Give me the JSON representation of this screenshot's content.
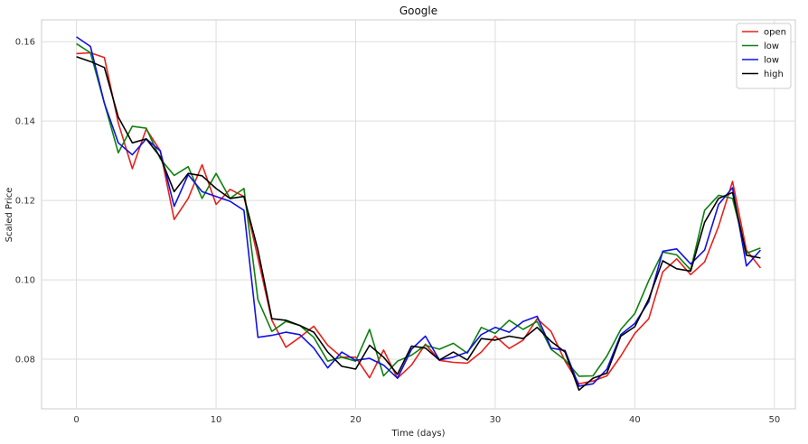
{
  "chart_data": {
    "type": "line",
    "title": "Google",
    "xlabel": "Time (days)",
    "ylabel": "Scaled Price",
    "xlim": [
      -2.5,
      51.5
    ],
    "ylim": [
      0.0675,
      0.1655
    ],
    "xticks": [
      0,
      10,
      20,
      30,
      40,
      50
    ],
    "yticks": [
      0.08,
      0.1,
      0.12,
      0.14,
      0.16
    ],
    "ytick_labels": [
      "0.08",
      "0.10",
      "0.12",
      "0.14",
      "0.16"
    ],
    "grid": true,
    "legend_position": "top-right",
    "x": [
      0,
      1,
      2,
      3,
      4,
      5,
      6,
      7,
      8,
      9,
      10,
      11,
      12,
      13,
      14,
      15,
      16,
      17,
      18,
      19,
      20,
      21,
      22,
      23,
      24,
      25,
      26,
      27,
      28,
      29,
      30,
      31,
      32,
      33,
      34,
      35,
      36,
      37,
      38,
      39,
      40,
      41,
      42,
      43,
      44,
      45,
      46,
      47,
      48,
      49
    ],
    "series": [
      {
        "name": "open",
        "color": "#e8211a",
        "values": [
          0.157,
          0.1572,
          0.156,
          0.1395,
          0.128,
          0.138,
          0.1325,
          0.1152,
          0.1205,
          0.129,
          0.119,
          0.1228,
          0.121,
          0.1055,
          0.0898,
          0.083,
          0.0855,
          0.0883,
          0.0835,
          0.0805,
          0.0805,
          0.0753,
          0.0823,
          0.0752,
          0.0785,
          0.0838,
          0.0797,
          0.0792,
          0.079,
          0.0818,
          0.0858,
          0.0827,
          0.0848,
          0.0902,
          0.087,
          0.0795,
          0.0738,
          0.0745,
          0.0758,
          0.0808,
          0.0865,
          0.0902,
          0.102,
          0.1053,
          0.1013,
          0.1045,
          0.1135,
          0.1248,
          0.1075,
          0.103
        ]
      },
      {
        "name": "low",
        "color": "#0f800f",
        "values": [
          0.1595,
          0.1572,
          0.1445,
          0.132,
          0.1387,
          0.1382,
          0.1305,
          0.1263,
          0.1285,
          0.1205,
          0.1268,
          0.1205,
          0.123,
          0.095,
          0.087,
          0.0895,
          0.0885,
          0.0855,
          0.0795,
          0.0805,
          0.0795,
          0.0875,
          0.0758,
          0.0795,
          0.081,
          0.0835,
          0.0825,
          0.084,
          0.0815,
          0.088,
          0.0865,
          0.0898,
          0.0875,
          0.0895,
          0.0825,
          0.0798,
          0.0757,
          0.0758,
          0.0808,
          0.0875,
          0.0915,
          0.0998,
          0.107,
          0.1063,
          0.1025,
          0.1175,
          0.1213,
          0.1205,
          0.1067,
          0.108
        ]
      },
      {
        "name": "low",
        "color": "#1010e8",
        "values": [
          0.1612,
          0.1588,
          0.1445,
          0.1345,
          0.1315,
          0.1355,
          0.1325,
          0.1185,
          0.1265,
          0.1222,
          0.121,
          0.1198,
          0.1175,
          0.0855,
          0.086,
          0.0868,
          0.0862,
          0.0828,
          0.0778,
          0.0818,
          0.0797,
          0.0802,
          0.0785,
          0.0752,
          0.0825,
          0.0858,
          0.0798,
          0.0805,
          0.0818,
          0.0862,
          0.088,
          0.0868,
          0.0895,
          0.0908,
          0.0828,
          0.0822,
          0.0732,
          0.0738,
          0.0775,
          0.0862,
          0.089,
          0.0945,
          0.1072,
          0.1078,
          0.104,
          0.1075,
          0.119,
          0.1232,
          0.1035,
          0.1075
        ]
      },
      {
        "name": "high",
        "color": "#000000",
        "values": [
          0.1562,
          0.155,
          0.1535,
          0.141,
          0.1345,
          0.1355,
          0.131,
          0.1222,
          0.1268,
          0.1262,
          0.123,
          0.1205,
          0.121,
          0.1075,
          0.0902,
          0.0898,
          0.0885,
          0.0868,
          0.0818,
          0.0782,
          0.0775,
          0.0835,
          0.0805,
          0.0762,
          0.0833,
          0.0828,
          0.0798,
          0.0818,
          0.0798,
          0.0852,
          0.0848,
          0.0858,
          0.0852,
          0.088,
          0.0845,
          0.0818,
          0.0722,
          0.0752,
          0.0765,
          0.0858,
          0.0882,
          0.0952,
          0.1048,
          0.1028,
          0.1022,
          0.1145,
          0.1205,
          0.122,
          0.1062,
          0.1055
        ]
      }
    ]
  }
}
